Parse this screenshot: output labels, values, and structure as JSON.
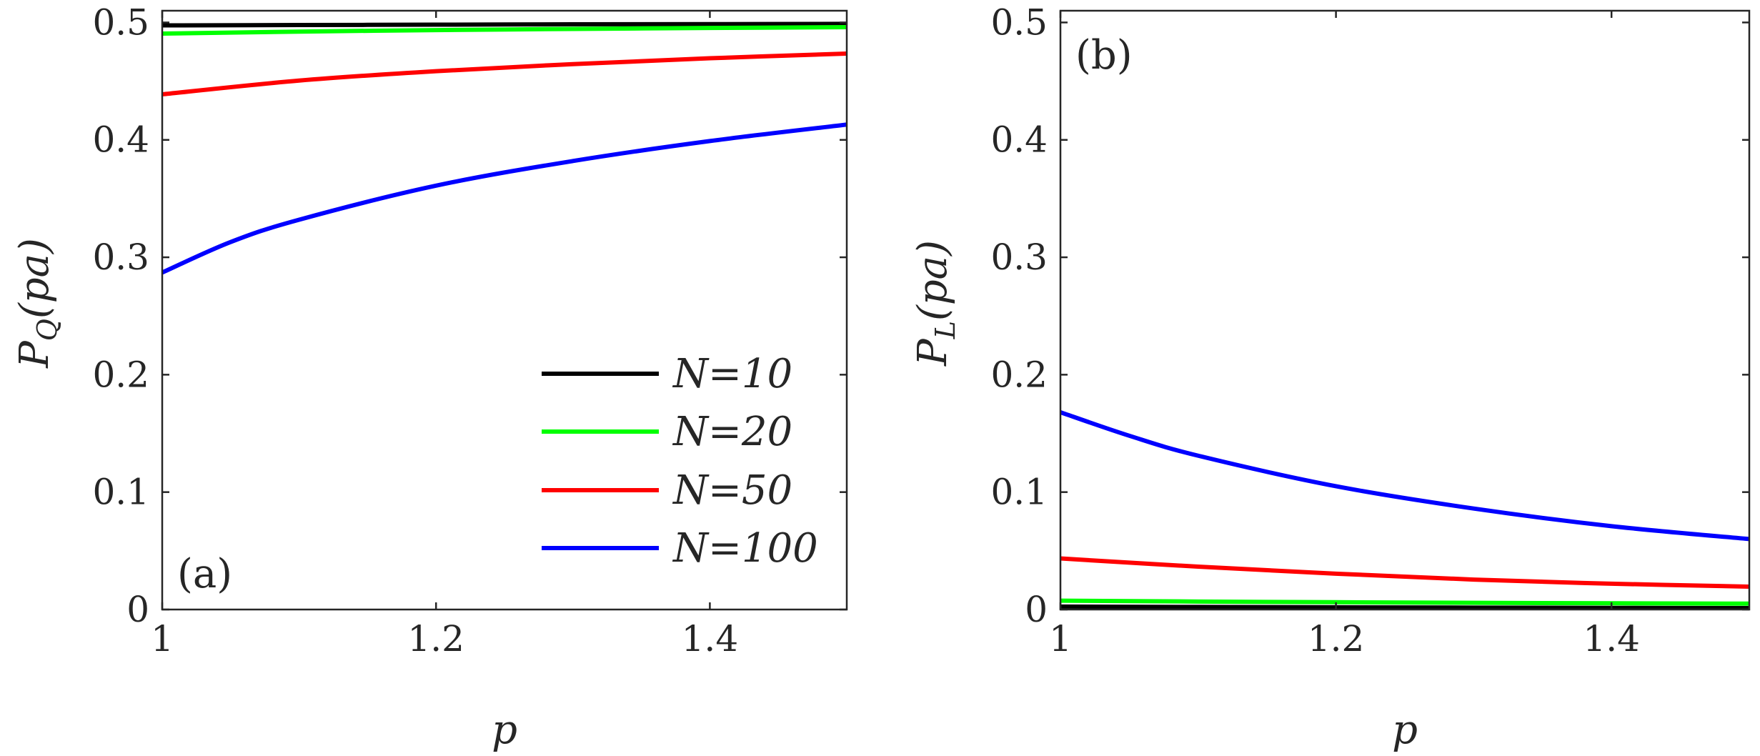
{
  "chart_data": [
    {
      "type": "line",
      "panel_label": "(a)",
      "xlabel": "p",
      "ylabel": "P_Q(pa)",
      "ylabel_main": "P",
      "ylabel_sub": "Q",
      "ylabel_args": "(pa)",
      "xlim": [
        1,
        1.5
      ],
      "ylim": [
        0,
        0.51
      ],
      "xticks": [
        1,
        1.2,
        1.4
      ],
      "xtick_labels": [
        "1",
        "1.2",
        "1.4"
      ],
      "yticks": [
        0,
        0.1,
        0.2,
        0.3,
        0.4,
        0.5
      ],
      "ytick_labels": [
        "0",
        "0.1",
        "0.2",
        "0.3",
        "0.4",
        "0.5"
      ],
      "legend_position": "bottom-right",
      "legend": [
        "N=10",
        "N=20",
        "N=50",
        "N=100"
      ],
      "series": [
        {
          "name": "N=10",
          "color": "#000000",
          "x": [
            1.0,
            1.1,
            1.2,
            1.3,
            1.4,
            1.5
          ],
          "values": [
            0.4975,
            0.4978,
            0.4981,
            0.4984,
            0.4986,
            0.4988
          ]
        },
        {
          "name": "N=20",
          "color": "#00ff00",
          "x": [
            1.0,
            1.1,
            1.2,
            1.3,
            1.4,
            1.5
          ],
          "values": [
            0.4905,
            0.4922,
            0.4935,
            0.4945,
            0.4953,
            0.496
          ]
        },
        {
          "name": "N=50",
          "color": "#ff0000",
          "x": [
            1.0,
            1.1,
            1.2,
            1.3,
            1.4,
            1.5
          ],
          "values": [
            0.4388,
            0.4505,
            0.4585,
            0.4645,
            0.4695,
            0.4735
          ]
        },
        {
          "name": "N=100",
          "color": "#0000ff",
          "x": [
            1.0,
            1.05,
            1.1,
            1.2,
            1.3,
            1.4,
            1.5
          ],
          "values": [
            0.287,
            0.313,
            0.332,
            0.361,
            0.382,
            0.399,
            0.413
          ]
        }
      ]
    },
    {
      "type": "line",
      "panel_label": "(b)",
      "xlabel": "p",
      "ylabel": "P_L(pa)",
      "ylabel_main": "P",
      "ylabel_sub": "L",
      "ylabel_args": "(pa)",
      "xlim": [
        1,
        1.5
      ],
      "ylim": [
        0,
        0.51
      ],
      "xticks": [
        1,
        1.2,
        1.4
      ],
      "xtick_labels": [
        "1",
        "1.2",
        "1.4"
      ],
      "yticks": [
        0,
        0.1,
        0.2,
        0.3,
        0.4,
        0.5
      ],
      "ytick_labels": [
        "0",
        "0.1",
        "0.2",
        "0.3",
        "0.4",
        "0.5"
      ],
      "series": [
        {
          "name": "N=10",
          "color": "#000000",
          "x": [
            1.0,
            1.1,
            1.2,
            1.3,
            1.4,
            1.5
          ],
          "values": [
            0.0025,
            0.0022,
            0.0019,
            0.0016,
            0.0014,
            0.0012
          ]
        },
        {
          "name": "N=20",
          "color": "#00ff00",
          "x": [
            1.0,
            1.1,
            1.2,
            1.3,
            1.4,
            1.5
          ],
          "values": [
            0.0075,
            0.0068,
            0.0062,
            0.0057,
            0.0053,
            0.005
          ]
        },
        {
          "name": "N=50",
          "color": "#ff0000",
          "x": [
            1.0,
            1.1,
            1.2,
            1.3,
            1.4,
            1.5
          ],
          "values": [
            0.0435,
            0.0365,
            0.0305,
            0.0255,
            0.022,
            0.0195
          ]
        },
        {
          "name": "N=100",
          "color": "#0000ff",
          "x": [
            1.0,
            1.05,
            1.1,
            1.2,
            1.3,
            1.4,
            1.5
          ],
          "values": [
            0.168,
            0.148,
            0.131,
            0.105,
            0.086,
            0.071,
            0.06
          ]
        }
      ]
    }
  ]
}
